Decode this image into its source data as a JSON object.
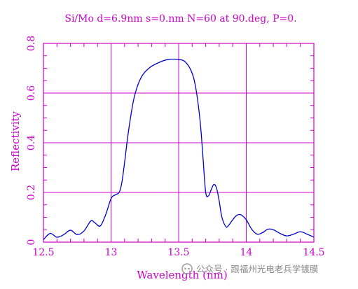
{
  "colors": {
    "axes": "#cc00cc",
    "grid": "#cc00cc",
    "line": "#0000cc",
    "text": "#cc00cc",
    "watermark": "#8a8a8a",
    "background": "#ffffff"
  },
  "watermark": {
    "icon": "wechat-official-account-icon",
    "text": "公众号 · 跟福州光电老兵学镀膜"
  },
  "chart_data": {
    "type": "line",
    "title": "Si/Mo d=6.9nm s=0.nm N=60 at 90.deg, P=0.",
    "xlabel": "Wavelength (nm)",
    "ylabel": "Reflectivity",
    "xlim": [
      12.5,
      14.5
    ],
    "ylim": [
      0,
      0.8
    ],
    "xticks": [
      12.5,
      13,
      13.5,
      14,
      14.5
    ],
    "xtick_labels": [
      "12.5",
      "13",
      "13.5",
      "14",
      "14.5"
    ],
    "yticks": [
      0,
      0.2,
      0.4,
      0.6,
      0.8
    ],
    "ytick_labels": [
      "0",
      "0.2",
      "0.4",
      "0.6",
      "0.8"
    ],
    "grid": true,
    "series": [
      {
        "x": [
          12.5,
          12.55,
          12.6,
          12.65,
          12.7,
          12.75,
          12.8,
          12.85,
          12.88,
          12.92,
          12.96,
          13.0,
          13.03,
          13.06,
          13.08,
          13.1,
          13.13,
          13.17,
          13.22,
          13.28,
          13.35,
          13.42,
          13.5,
          13.55,
          13.6,
          13.63,
          13.66,
          13.68,
          13.7,
          13.72,
          13.74,
          13.76,
          13.78,
          13.8,
          13.82,
          13.85,
          13.87,
          13.9,
          13.93,
          13.96,
          14.0,
          14.04,
          14.08,
          14.12,
          14.16,
          14.2,
          14.25,
          14.3,
          14.35,
          14.4,
          14.45,
          14.5
        ],
        "y": [
          0.01,
          0.035,
          0.02,
          0.03,
          0.048,
          0.03,
          0.045,
          0.085,
          0.078,
          0.065,
          0.11,
          0.175,
          0.19,
          0.2,
          0.24,
          0.32,
          0.45,
          0.58,
          0.66,
          0.7,
          0.722,
          0.735,
          0.735,
          0.725,
          0.68,
          0.61,
          0.48,
          0.34,
          0.2,
          0.186,
          0.21,
          0.232,
          0.218,
          0.165,
          0.1,
          0.062,
          0.068,
          0.09,
          0.108,
          0.11,
          0.09,
          0.052,
          0.032,
          0.038,
          0.052,
          0.05,
          0.035,
          0.025,
          0.032,
          0.042,
          0.032,
          0.02
        ]
      }
    ]
  }
}
